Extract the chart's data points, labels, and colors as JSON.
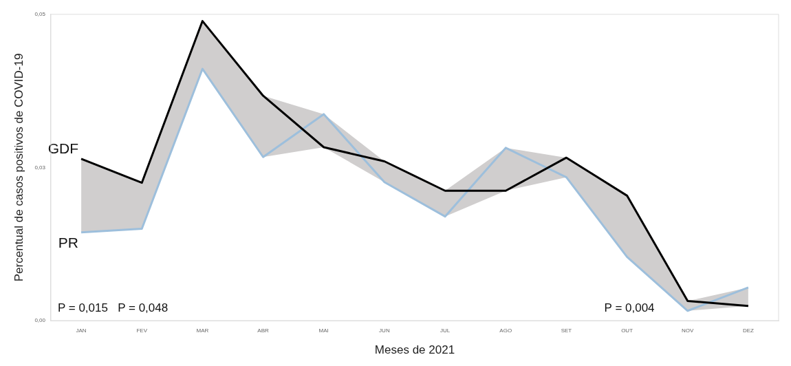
{
  "chart_data": {
    "type": "line",
    "xlabel": "Meses de 2021",
    "ylabel": "Percentual de casos positivos de COVID-19",
    "categories": [
      "JAN",
      "FEV",
      "MAR",
      "ABR",
      "MAI",
      "JUN",
      "JUL",
      "AGO",
      "SET",
      "OUT",
      "NOV",
      "DEZ"
    ],
    "series": [
      {
        "name": "GDF",
        "color": "#000000",
        "values": [
          0.0264,
          0.0225,
          0.0489,
          0.0367,
          0.0283,
          0.026,
          0.0212,
          0.0212,
          0.0266,
          0.0204,
          0.0032,
          0.0024
        ],
        "lower": [
          0.0144,
          0.015,
          0.0411,
          0.0267,
          0.0283,
          0.0226,
          0.017,
          0.0212,
          0.0234,
          0.0104,
          0.0016,
          0.0024
        ],
        "upper": [
          0.0264,
          0.0225,
          0.0489,
          0.0367,
          0.0337,
          0.026,
          0.0212,
          0.0282,
          0.0266,
          0.0204,
          0.0032,
          0.0054
        ]
      },
      {
        "name": "PR",
        "color": "#9dbfdc",
        "values": [
          0.0144,
          0.015,
          0.0411,
          0.0267,
          0.0337,
          0.0226,
          0.017,
          0.0282,
          0.0234,
          0.0104,
          0.0016,
          0.0054
        ]
      }
    ],
    "ylim": [
      0,
      0.05
    ],
    "yticks": [
      {
        "value": 0,
        "label": "0,00"
      },
      {
        "value": 0.025,
        "label": "0,03"
      },
      {
        "value": 0.05,
        "label": "0,05"
      }
    ],
    "annotations": [
      "P = 0,015",
      "P = 0,048",
      "P = 0,004"
    ],
    "grid": false,
    "legend": false,
    "marker": "none",
    "line_style": "solid"
  }
}
